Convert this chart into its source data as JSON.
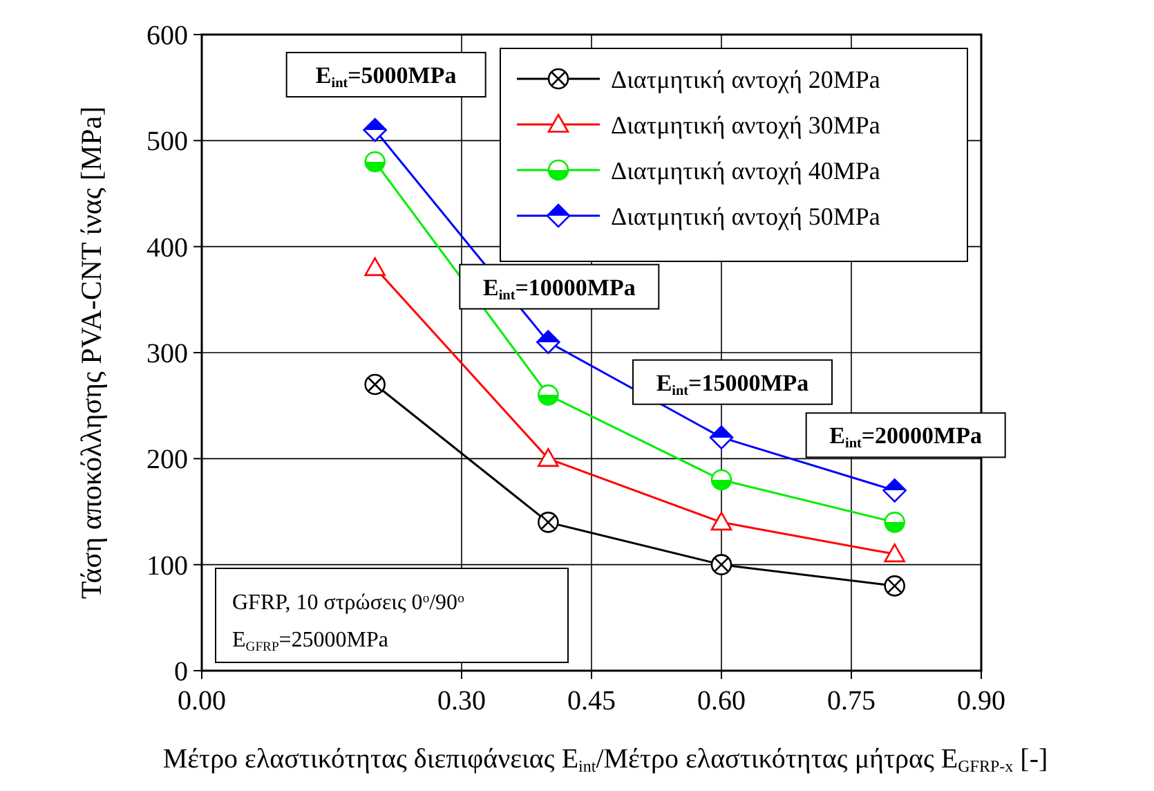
{
  "chart_data": {
    "type": "line",
    "xlabel": "Μέτρο ελαστικότητας διεπιφάνειας E$_{int}$/Μέτρο ελαστικότητας μήτρας E$_{GFRP-x}$ [-]",
    "ylabel": "Τάση αποκόλλησης PVA-CNT ίνας [MPa]",
    "x": [
      0.2,
      0.4,
      0.6,
      0.8
    ],
    "series": [
      {
        "name": "Διατμητική αντοχή 20MPa",
        "color": "#000000",
        "marker": "cross",
        "values": [
          270,
          140,
          100,
          80
        ]
      },
      {
        "name": "Διατμητική αντοχή 30MPa",
        "color": "#ff0000",
        "marker": "triangle",
        "values": [
          380,
          200,
          140,
          110
        ]
      },
      {
        "name": "Διατμητική αντοχή 40MPa",
        "color": "#00ee00",
        "marker": "circle",
        "values": [
          480,
          260,
          180,
          140
        ]
      },
      {
        "name": "Διατμητική αντοχή 50MPa",
        "color": "#0000ff",
        "marker": "diamond",
        "values": [
          510,
          310,
          220,
          170
        ]
      }
    ],
    "xlim": [
      0,
      0.9
    ],
    "xticks": [
      {
        "value": 0,
        "label": "0.00"
      },
      {
        "value": 0.3,
        "label": "0.30"
      },
      {
        "value": 0.45,
        "label": "0.45"
      },
      {
        "value": 0.6,
        "label": "0.60"
      },
      {
        "value": 0.75,
        "label": "0.75"
      },
      {
        "value": 0.9,
        "label": "0.90"
      }
    ],
    "ylim": [
      0,
      600
    ],
    "yticks": [
      0,
      100,
      200,
      300,
      400,
      500,
      600
    ],
    "grid": true,
    "legend": "top right",
    "annotations": [
      {
        "text": "E$_{int}$=5000MPa",
        "x": 0.2,
        "y": 510
      },
      {
        "text": "E$_{int}$=10000MPa",
        "x": 0.4,
        "y": 310
      },
      {
        "text": "E$_{int}$=15000MPa",
        "x": 0.6,
        "y": 220
      },
      {
        "text": "E$_{int}$=20000MPa",
        "x": 0.8,
        "y": 170
      },
      "GFRP, 10 στρώσεις 0$^{o}$/90$^{o}$",
      "E$_{GFRP}$=25000MPa"
    ]
  }
}
